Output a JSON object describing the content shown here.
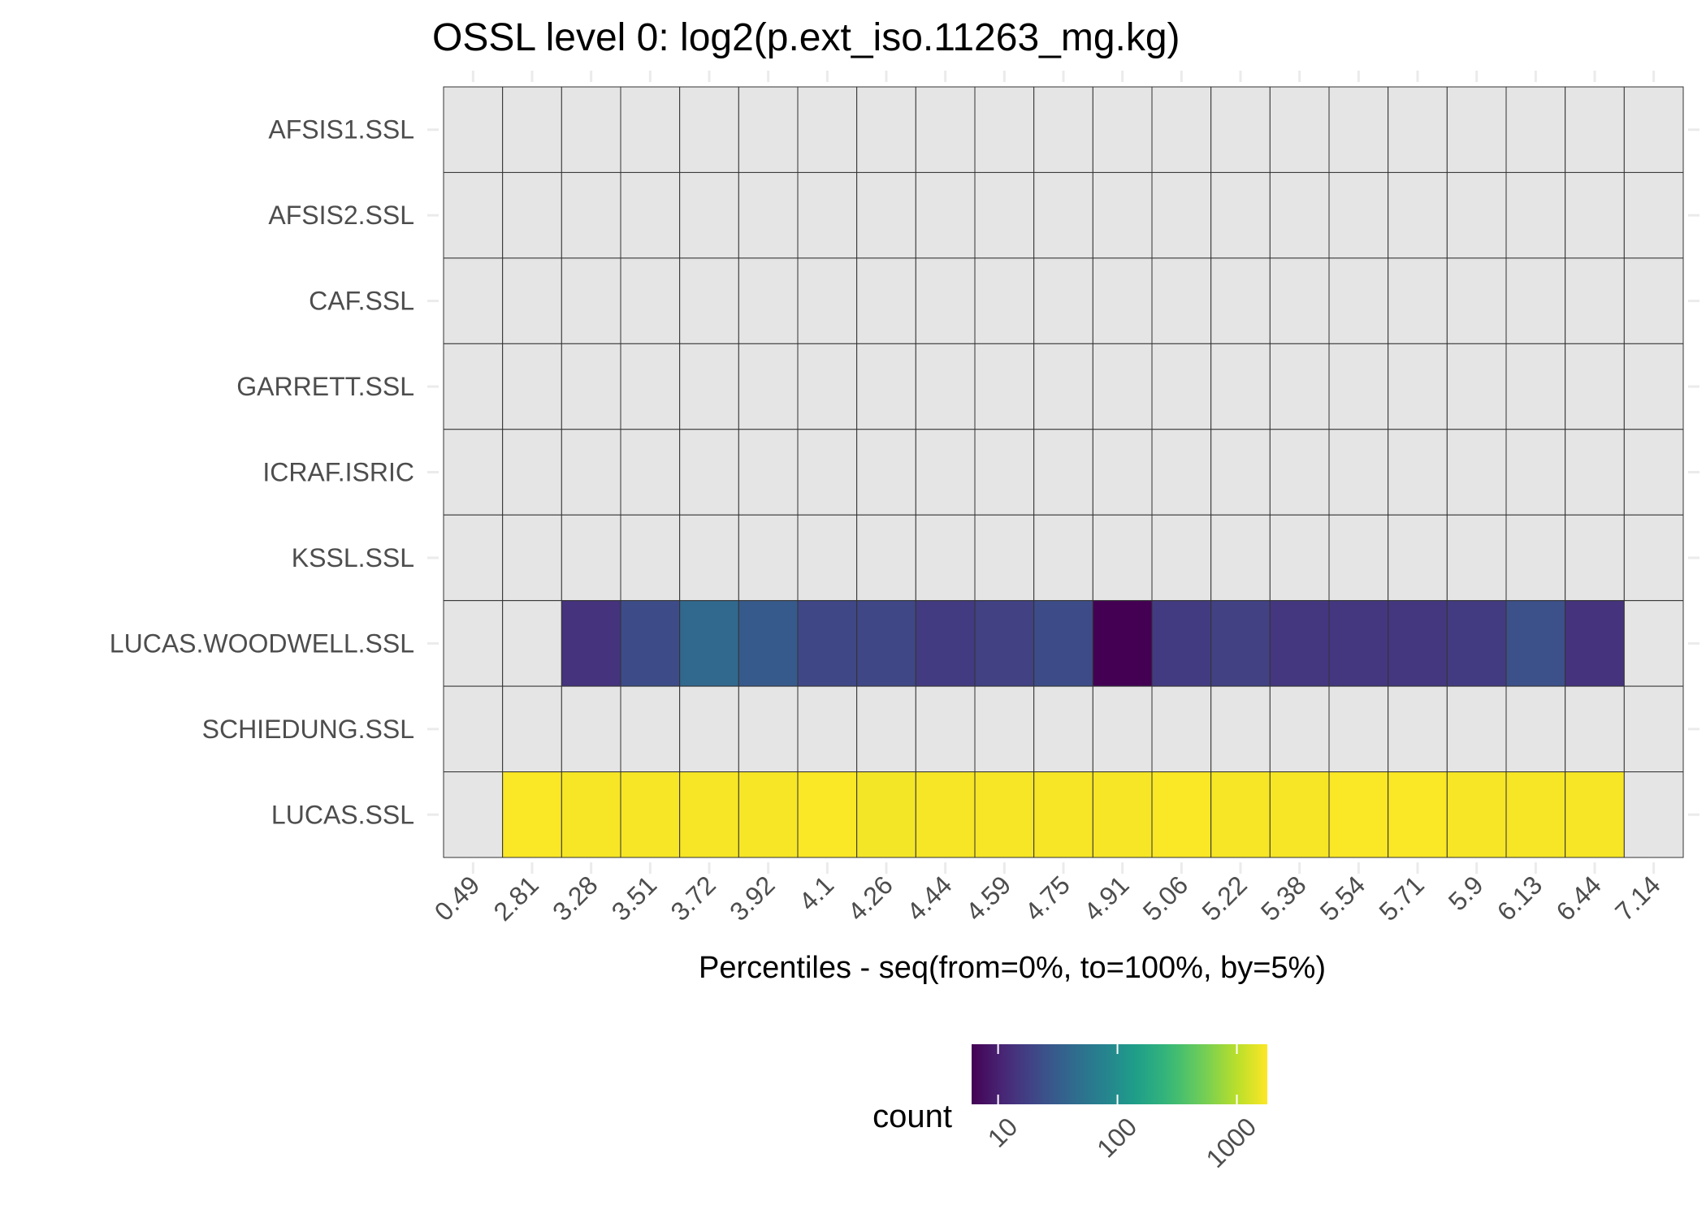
{
  "chart_data": {
    "type": "heatmap",
    "title": "OSSL level 0: log2(p.ext_iso.11263_mg.kg)",
    "xlabel": "Percentiles - seq(from=0%, to=100%, by=5%)",
    "ylabel": "",
    "x_categories": [
      "0.49",
      "2.81",
      "3.28",
      "3.51",
      "3.72",
      "3.92",
      "4.1",
      "4.26",
      "4.44",
      "4.59",
      "4.75",
      "4.91",
      "5.06",
      "5.22",
      "5.38",
      "5.54",
      "5.71",
      "5.9",
      "6.13",
      "6.44",
      "7.14"
    ],
    "y_categories": [
      "AFSIS1.SSL",
      "AFSIS2.SSL",
      "CAF.SSL",
      "GARRETT.SSL",
      "ICRAF.ISRIC",
      "KSSL.SSL",
      "LUCAS.WOODWELL.SSL",
      "SCHIEDUNG.SSL",
      "LUCAS.SSL"
    ],
    "na_color": "#e5e5e5",
    "values": [
      [
        null,
        null,
        null,
        null,
        null,
        null,
        null,
        null,
        null,
        null,
        null,
        null,
        null,
        null,
        null,
        null,
        null,
        null,
        null,
        null,
        null
      ],
      [
        null,
        null,
        null,
        null,
        null,
        null,
        null,
        null,
        null,
        null,
        null,
        null,
        null,
        null,
        null,
        null,
        null,
        null,
        null,
        null,
        null
      ],
      [
        null,
        null,
        null,
        null,
        null,
        null,
        null,
        null,
        null,
        null,
        null,
        null,
        null,
        null,
        null,
        null,
        null,
        null,
        null,
        null,
        null
      ],
      [
        null,
        null,
        null,
        null,
        null,
        null,
        null,
        null,
        null,
        null,
        null,
        null,
        null,
        null,
        null,
        null,
        null,
        null,
        null,
        null,
        null
      ],
      [
        null,
        null,
        null,
        null,
        null,
        null,
        null,
        null,
        null,
        null,
        null,
        null,
        null,
        null,
        null,
        null,
        null,
        null,
        null,
        null,
        null
      ],
      [
        null,
        null,
        null,
        null,
        null,
        null,
        null,
        null,
        null,
        null,
        null,
        null,
        null,
        null,
        null,
        null,
        null,
        null,
        null,
        null,
        null
      ],
      [
        null,
        null,
        14,
        22,
        40,
        30,
        20,
        20,
        16,
        18,
        22,
        6,
        16,
        18,
        15,
        15,
        15,
        16,
        24,
        14,
        null
      ],
      [
        null,
        null,
        null,
        null,
        null,
        null,
        null,
        null,
        null,
        null,
        null,
        null,
        null,
        null,
        null,
        null,
        null,
        null,
        null,
        null,
        null
      ],
      [
        null,
        1750,
        1700,
        1700,
        1700,
        1700,
        1750,
        1650,
        1700,
        1700,
        1700,
        1700,
        1750,
        1700,
        1700,
        1750,
        1750,
        1700,
        1700,
        1700,
        null
      ]
    ],
    "legend": {
      "title": "count",
      "position": "bottom",
      "scale": "log10",
      "range": [
        6,
        1800
      ],
      "ticks": [
        10,
        100,
        1000
      ],
      "tick_labels": [
        "10",
        "100",
        "1000"
      ],
      "palette": "viridis"
    },
    "grid": true
  }
}
